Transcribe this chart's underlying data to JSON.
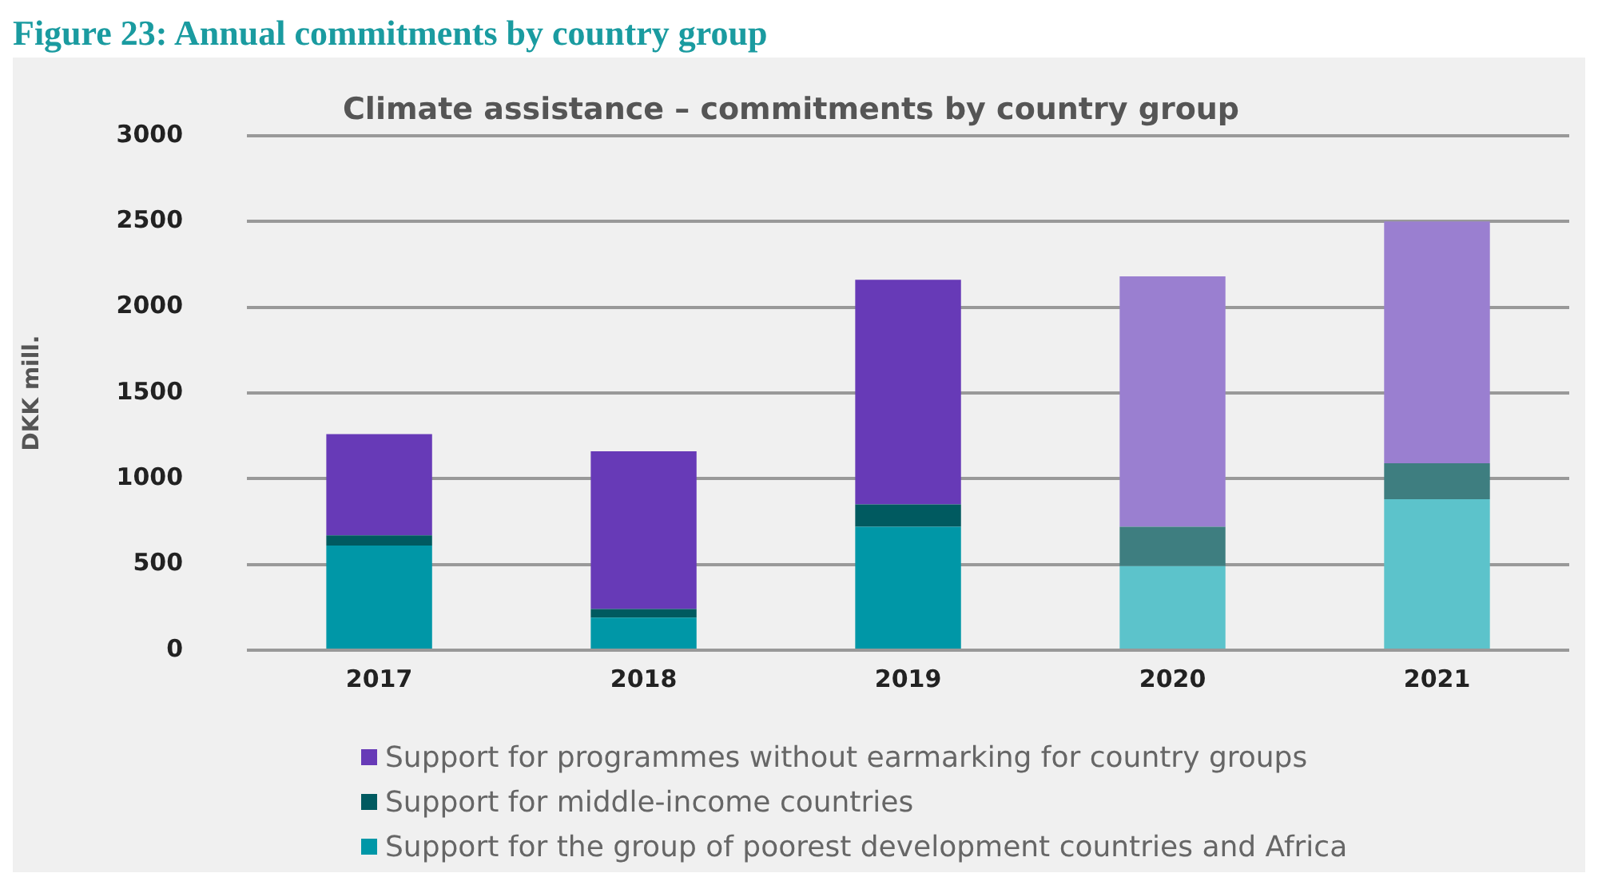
{
  "chart_data": {
    "type": "bar",
    "title": "Figure 23: Annual commitments by country group",
    "subtitle": "Climate assistance – commitments by country group",
    "ylabel": "DKK mill.",
    "categories": [
      "2017",
      "2018",
      "2019",
      "2020",
      "2021"
    ],
    "stacked": true,
    "series": [
      {
        "name": "Support for the group of poorest development countries and Africa",
        "color": "#0097a7",
        "colors": [
          "#0097a7",
          "#0097a7",
          "#0097a7",
          "#5cc3cb",
          "#5cc3cb"
        ],
        "values": [
          610,
          190,
          720,
          490,
          880
        ]
      },
      {
        "name": "Support for middle-income countries",
        "color": "#005a60",
        "colors": [
          "#005a60",
          "#005a60",
          "#005a60",
          "#3e7e80",
          "#3e7e80"
        ],
        "values": [
          60,
          50,
          130,
          230,
          210
        ]
      },
      {
        "name": "Support for programmes without earmarking for country groups",
        "color": "#673ab7",
        "colors": [
          "#673ab7",
          "#673ab7",
          "#673ab7",
          "#9a7fd0",
          "#9a7fd0"
        ],
        "values": [
          590,
          920,
          1310,
          1460,
          1410
        ]
      }
    ],
    "ylim": [
      0,
      3000
    ],
    "yticks": [
      0,
      500,
      1000,
      1500,
      2000,
      2500,
      3000
    ],
    "grid": "y",
    "legend": "bottom"
  }
}
